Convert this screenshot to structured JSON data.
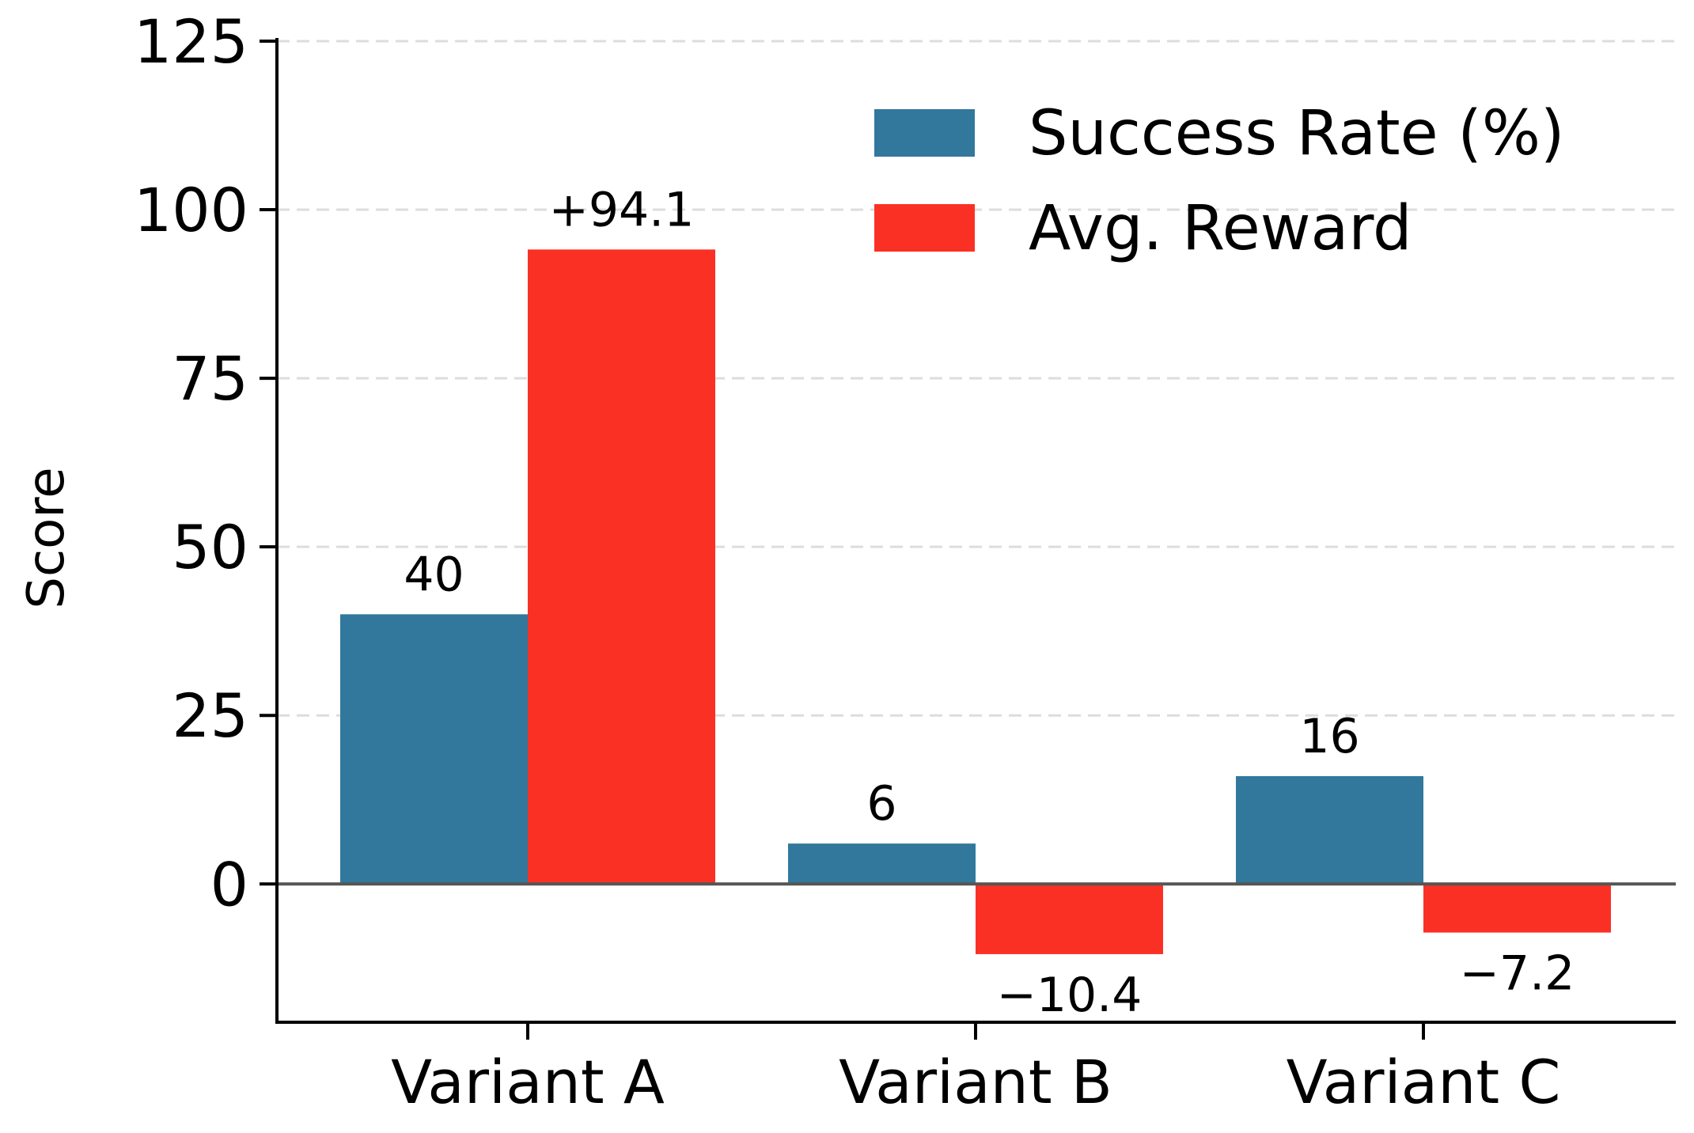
{
  "chart_data": {
    "type": "bar",
    "title": "",
    "xlabel": "",
    "ylabel": "Score",
    "categories": [
      "Variant A",
      "Variant B",
      "Variant C"
    ],
    "series": [
      {
        "name": "Success Rate (%)",
        "color": "#31789c",
        "values": [
          40,
          6,
          16
        ],
        "labels": [
          "40",
          "6",
          "16"
        ]
      },
      {
        "name": "Avg. Reward",
        "color": "#fb3025",
        "values": [
          94.1,
          -10.4,
          -7.2
        ],
        "labels": [
          "+94.1",
          "−10.4",
          "−7.2"
        ]
      }
    ],
    "ylim": [
      -20.5,
      125
    ],
    "yticks": [
      0,
      25,
      50,
      75,
      100,
      125
    ],
    "ytick_labels": [
      "0",
      "25",
      "50",
      "75",
      "100",
      "125"
    ],
    "grid": "horizontal dashed",
    "legend_position": "top-right",
    "zero_line": true
  }
}
